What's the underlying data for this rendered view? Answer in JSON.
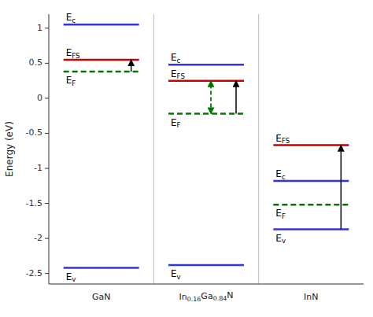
{
  "chart_data": {
    "type": "level",
    "ylabel": "Energy (eV)",
    "categories": [
      "GaN",
      "In0.16Ga0.84N",
      "InN"
    ],
    "series": [
      {
        "name": "Ec",
        "color": "#3333DD",
        "values": [
          1.05,
          0.48,
          -1.18
        ]
      },
      {
        "name": "EFS",
        "color": "#CC0000",
        "values": [
          0.55,
          0.25,
          -0.67
        ]
      },
      {
        "name": "EF",
        "color": "#007700",
        "line_style": "dashed",
        "values": [
          0.38,
          -0.22,
          -1.52
        ]
      },
      {
        "name": "Ev",
        "color": "#3333DD",
        "values": [
          -2.42,
          -2.38,
          -1.87
        ]
      }
    ],
    "arrows": [
      {
        "category": "GaN",
        "from": "EF",
        "to": "EFS",
        "color": "#000000"
      },
      {
        "category": "In0.16Ga0.84N",
        "from": "EF",
        "to": "EFS",
        "color": "#000000"
      },
      {
        "category": "In0.16Ga0.84N",
        "from": "EF",
        "to": "EFS",
        "color": "#007700",
        "line_style": "dashed",
        "marker": "both"
      },
      {
        "category": "InN",
        "from": "Ev",
        "to": "EFS",
        "color": "#000000"
      }
    ],
    "ylim": [
      -2.65,
      1.2
    ],
    "yticks": [
      -2.5,
      -2.0,
      -1.5,
      -1.0,
      -0.5,
      0.0,
      0.5,
      1.0
    ],
    "grid": false
  }
}
